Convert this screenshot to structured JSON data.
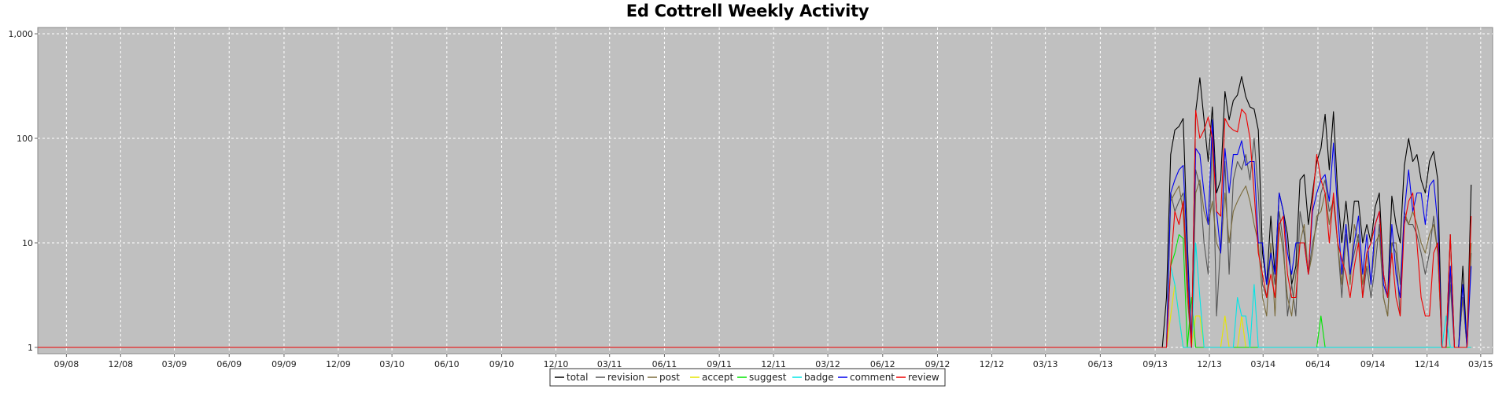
{
  "chart_data": {
    "type": "line",
    "title": "Ed Cottrell Weekly Activity",
    "xlabel": "",
    "ylabel": "",
    "yscale": "log",
    "ylim": [
      1,
      1000
    ],
    "xlim": [
      "2008-07-15",
      "2015-03-21"
    ],
    "grid": true,
    "legend_position": "bottom-center",
    "background": "#c0c0c0",
    "y_tick_labels": [
      "1",
      "10",
      "100",
      "1,000"
    ],
    "x_tick_labels": [
      "09/08",
      "12/08",
      "03/09",
      "06/09",
      "09/09",
      "12/09",
      "03/10",
      "06/10",
      "09/10",
      "12/10",
      "03/11",
      "06/11",
      "09/11",
      "12/11",
      "03/12",
      "06/12",
      "09/12",
      "12/12",
      "03/13",
      "06/13",
      "09/13",
      "12/13",
      "03/14",
      "06/14",
      "09/14",
      "12/14",
      "03/15"
    ],
    "x_start": "2013-09-13",
    "x_step_days": 7,
    "series": [
      {
        "name": "total",
        "color": "#000000",
        "values": [
          1,
          3,
          70,
          120,
          130,
          155,
          10,
          1,
          180,
          380,
          150,
          60,
          200,
          30,
          40,
          280,
          150,
          230,
          260,
          390,
          250,
          200,
          190,
          120,
          8,
          4,
          18,
          5,
          30,
          20,
          12,
          4,
          6,
          40,
          45,
          15,
          30,
          60,
          80,
          170,
          50,
          180,
          30,
          10,
          25,
          10,
          25,
          25,
          10,
          15,
          10,
          22,
          30,
          5,
          3,
          28,
          15,
          10,
          55,
          100,
          60,
          70,
          40,
          30,
          60,
          75,
          40,
          1,
          1,
          12,
          1,
          1,
          6,
          1,
          36
        ]
      },
      {
        "name": "revision",
        "color": "#555555",
        "values": [
          1,
          1,
          30,
          20,
          25,
          30,
          5,
          1,
          50,
          35,
          10,
          5,
          120,
          2,
          10,
          60,
          5,
          40,
          60,
          50,
          70,
          40,
          100,
          30,
          4,
          3,
          8,
          4,
          20,
          10,
          2,
          4,
          2,
          20,
          12,
          5,
          10,
          15,
          30,
          40,
          20,
          25,
          10,
          3,
          12,
          5,
          8,
          12,
          3,
          6,
          3,
          6,
          15,
          3,
          2,
          10,
          8,
          2,
          18,
          15,
          15,
          12,
          8,
          5,
          8,
          18,
          8,
          1,
          1,
          4,
          1,
          1,
          3,
          1,
          8
        ]
      },
      {
        "name": "post",
        "color": "#7a6a3a",
        "values": [
          1,
          1,
          25,
          30,
          35,
          20,
          3,
          1,
          30,
          40,
          20,
          15,
          25,
          10,
          8,
          30,
          10,
          20,
          25,
          30,
          35,
          25,
          15,
          10,
          3,
          2,
          10,
          2,
          15,
          8,
          3,
          2,
          5,
          10,
          15,
          5,
          8,
          18,
          20,
          30,
          15,
          28,
          10,
          4,
          15,
          4,
          15,
          10,
          4,
          8,
          4,
          10,
          12,
          3,
          2,
          10,
          10,
          4,
          20,
          15,
          20,
          15,
          10,
          8,
          12,
          15,
          8,
          1,
          1,
          5,
          1,
          1,
          3,
          1,
          10
        ]
      },
      {
        "name": "accept",
        "color": "#e6e600",
        "values": [
          1,
          1,
          2,
          4,
          2,
          1,
          1,
          1,
          2,
          2,
          1,
          1,
          1,
          1,
          1,
          2,
          1,
          1,
          1,
          2,
          1,
          1,
          1,
          1,
          1,
          1,
          1,
          1,
          1,
          1,
          1,
          1,
          1,
          1,
          1,
          1,
          1,
          1,
          1,
          1,
          1,
          1,
          1,
          1,
          1,
          1,
          1,
          1,
          1,
          1,
          1,
          1,
          1,
          1,
          1,
          1,
          1,
          1,
          1,
          1,
          1,
          1,
          1,
          1,
          1,
          1,
          1,
          1,
          1,
          1,
          1,
          1,
          1,
          1,
          1
        ]
      },
      {
        "name": "suggest",
        "color": "#00e600",
        "values": [
          1,
          1,
          6,
          8,
          12,
          11,
          1,
          3,
          1,
          1,
          1,
          1,
          1,
          1,
          1,
          1,
          1,
          1,
          1,
          1,
          1,
          1,
          1,
          1,
          1,
          1,
          1,
          1,
          1,
          1,
          1,
          1,
          1,
          1,
          1,
          1,
          1,
          1,
          2,
          1,
          1,
          1,
          1,
          1,
          1,
          1,
          1,
          1,
          1,
          1,
          1,
          1,
          1,
          1,
          1,
          1,
          1,
          1,
          1,
          1,
          1,
          1,
          1,
          1,
          1,
          1,
          1,
          1,
          1,
          1,
          1,
          1,
          1,
          1,
          1
        ]
      },
      {
        "name": "badge",
        "color": "#00e6e6",
        "values": [
          1,
          1,
          6,
          4,
          2,
          1,
          1,
          1,
          10,
          3,
          1,
          1,
          1,
          1,
          1,
          1,
          1,
          1,
          3,
          2,
          2,
          1,
          4,
          1,
          1,
          1,
          1,
          1,
          1,
          1,
          1,
          1,
          1,
          1,
          1,
          1,
          1,
          1,
          1,
          1,
          1,
          1,
          1,
          1,
          1,
          1,
          1,
          1,
          1,
          1,
          1,
          1,
          1,
          1,
          1,
          1,
          1,
          1,
          1,
          1,
          1,
          1,
          1,
          1,
          1,
          1,
          1,
          1,
          2,
          1,
          1,
          1,
          1,
          1,
          1
        ]
      },
      {
        "name": "comment",
        "color": "#0000ee",
        "values": [
          1,
          1,
          30,
          40,
          50,
          55,
          8,
          1,
          80,
          70,
          30,
          15,
          150,
          20,
          8,
          80,
          30,
          70,
          70,
          95,
          55,
          60,
          60,
          10,
          10,
          4,
          8,
          5,
          30,
          20,
          8,
          5,
          10,
          10,
          10,
          5,
          20,
          30,
          40,
          45,
          25,
          90,
          20,
          5,
          15,
          5,
          10,
          18,
          5,
          12,
          4,
          15,
          20,
          4,
          3,
          15,
          5,
          3,
          20,
          50,
          20,
          30,
          30,
          15,
          35,
          40,
          15,
          1,
          1,
          6,
          1,
          1,
          4,
          1,
          6
        ]
      },
      {
        "name": "review",
        "color": "#ee0000",
        "values": [
          1,
          1,
          6,
          20,
          15,
          25,
          4,
          1,
          185,
          100,
          120,
          160,
          100,
          20,
          18,
          155,
          130,
          120,
          115,
          190,
          170,
          100,
          30,
          8,
          5,
          3,
          5,
          3,
          15,
          18,
          5,
          3,
          3,
          10,
          10,
          5,
          25,
          70,
          40,
          30,
          10,
          30,
          10,
          7,
          5,
          3,
          6,
          10,
          3,
          8,
          10,
          15,
          20,
          5,
          3,
          8,
          3,
          2,
          15,
          25,
          30,
          10,
          3,
          2,
          2,
          8,
          10,
          1,
          1,
          12,
          1,
          1,
          1,
          1,
          18
        ]
      }
    ]
  }
}
